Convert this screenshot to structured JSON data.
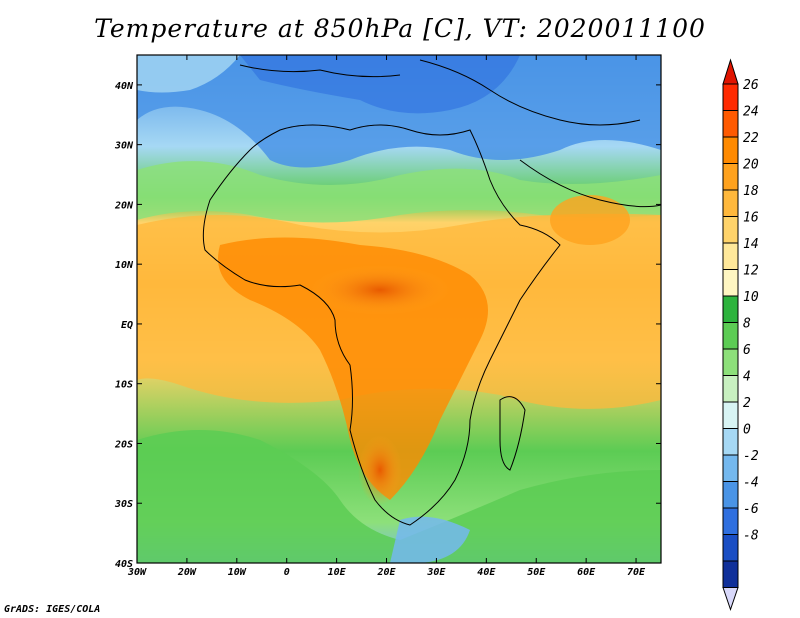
{
  "title": "Temperature at 850hPa [C], VT: 2020011100",
  "credit": "GrADS: IGES/COLA",
  "map": {
    "variable": "temperature_850hPa",
    "units": "C",
    "valid_time": "2020011100",
    "domain": {
      "lon_min": -30,
      "lon_max": 75,
      "lat_min": -40,
      "lat_max": 45
    },
    "lon_ticks": [
      "30W",
      "20W",
      "10W",
      "0",
      "10E",
      "20E",
      "30E",
      "40E",
      "50E",
      "60E",
      "70E"
    ],
    "lat_ticks": [
      "40N",
      "30N",
      "20N",
      "10N",
      "EQ",
      "10S",
      "20S",
      "30S",
      "40S"
    ]
  },
  "colorbar": {
    "labels": [
      "26",
      "24",
      "22",
      "20",
      "18",
      "16",
      "14",
      "12",
      "10",
      "8",
      "6",
      "4",
      "2",
      "0",
      "-2",
      "-4",
      "-6",
      "-8"
    ],
    "colors": [
      "#ff2a00",
      "#ff5a00",
      "#ff8a00",
      "#ffa21e",
      "#ffb83c",
      "#ffd36a",
      "#ffe89a",
      "#fff6c2",
      "#2db33d",
      "#5ccc54",
      "#8de07a",
      "#c8f0c0",
      "#d8f4f4",
      "#a6d8f4",
      "#74b8ee",
      "#4a94e6",
      "#2f6fdf",
      "#1a4ec4",
      "#10309a"
    ],
    "over_color": "#e01400",
    "under_color": "#d8d8fa"
  }
}
